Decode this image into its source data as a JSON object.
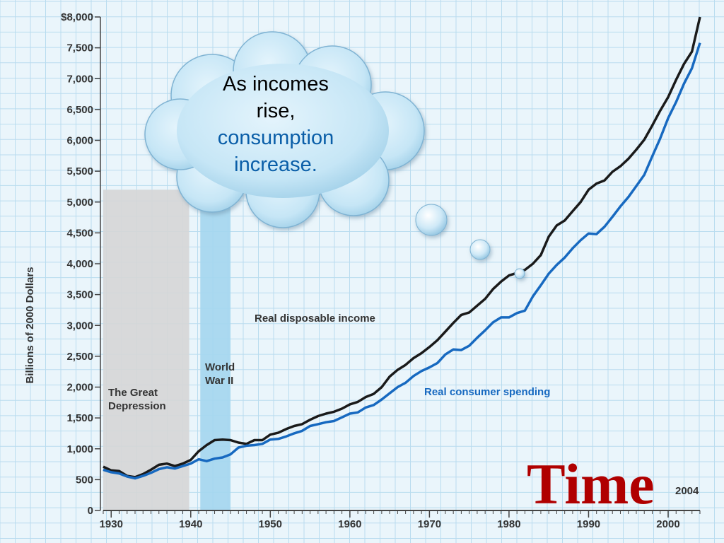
{
  "chart_data": {
    "type": "line",
    "title": "",
    "xlabel": "",
    "ylabel": "Billions of 2000 Dollars",
    "xlim": [
      1929,
      2004
    ],
    "ylim": [
      0,
      8000
    ],
    "x_ticks": [
      1930,
      1940,
      1950,
      1960,
      1970,
      1980,
      1990,
      2000
    ],
    "y_ticks": [
      {
        "value": 0,
        "label": "0"
      },
      {
        "value": 500,
        "label": "500"
      },
      {
        "value": 1000,
        "label": "1,000"
      },
      {
        "value": 1500,
        "label": "1,500"
      },
      {
        "value": 2000,
        "label": "2,000"
      },
      {
        "value": 2500,
        "label": "2,500"
      },
      {
        "value": 3000,
        "label": "3,000"
      },
      {
        "value": 3500,
        "label": "3,500"
      },
      {
        "value": 4000,
        "label": "4,000"
      },
      {
        "value": 4500,
        "label": "4,500"
      },
      {
        "value": 5000,
        "label": "5,000"
      },
      {
        "value": 5500,
        "label": "5,500"
      },
      {
        "value": 6000,
        "label": "6,000"
      },
      {
        "value": 6500,
        "label": "6,500"
      },
      {
        "value": 7000,
        "label": "7,000"
      },
      {
        "value": 7500,
        "label": "7,500"
      },
      {
        "value": 8000,
        "label": "$8,000"
      }
    ],
    "grid": true,
    "end_label": "2004",
    "shaded_regions": [
      {
        "label_lines": [
          "The Great",
          "Depression"
        ],
        "start": 1929,
        "end": 1939.8,
        "color": "#d6d6d6",
        "top_value": 5200
      },
      {
        "label_lines": [
          "World",
          "War II"
        ],
        "start": 1941.2,
        "end": 1945,
        "color": "#a4d6ee",
        "top_value": 5200
      }
    ],
    "series": [
      {
        "name": "Real disposable income",
        "color": "#1a1a1a",
        "x": [
          1929,
          1930,
          1931,
          1932,
          1933,
          1934,
          1935,
          1936,
          1937,
          1938,
          1939,
          1940,
          1941,
          1942,
          1943,
          1944,
          1945,
          1946,
          1947,
          1948,
          1949,
          1950,
          1951,
          1952,
          1953,
          1954,
          1955,
          1956,
          1957,
          1958,
          1959,
          1960,
          1961,
          1962,
          1963,
          1964,
          1965,
          1966,
          1967,
          1968,
          1969,
          1970,
          1971,
          1972,
          1973,
          1974,
          1975,
          1976,
          1977,
          1978,
          1979,
          1980,
          1981,
          1982,
          1983,
          1984,
          1985,
          1986,
          1987,
          1988,
          1989,
          1990,
          1991,
          1992,
          1993,
          1994,
          1995,
          1996,
          1997,
          1998,
          1999,
          2000,
          2001,
          2002,
          2003,
          2004
        ],
        "values": [
          710,
          650,
          640,
          560,
          540,
          590,
          660,
          740,
          760,
          720,
          760,
          820,
          960,
          1060,
          1140,
          1150,
          1140,
          1100,
          1080,
          1140,
          1140,
          1230,
          1260,
          1320,
          1370,
          1400,
          1470,
          1530,
          1570,
          1600,
          1650,
          1720,
          1760,
          1840,
          1890,
          2000,
          2170,
          2280,
          2360,
          2470,
          2550,
          2650,
          2760,
          2900,
          3040,
          3170,
          3210,
          3320,
          3430,
          3590,
          3710,
          3810,
          3850,
          3900,
          4000,
          4140,
          4440,
          4620,
          4700,
          4850,
          5000,
          5200,
          5300,
          5350,
          5490,
          5580,
          5700,
          5850,
          6010,
          6240,
          6480,
          6700,
          6980,
          7240,
          7440,
          8000
        ]
      },
      {
        "name": "Real consumer spending",
        "color": "#1769c0",
        "x": [
          1929,
          1930,
          1931,
          1932,
          1933,
          1934,
          1935,
          1936,
          1937,
          1938,
          1939,
          1940,
          1941,
          1942,
          1943,
          1944,
          1945,
          1946,
          1947,
          1948,
          1949,
          1950,
          1951,
          1952,
          1953,
          1954,
          1955,
          1956,
          1957,
          1958,
          1959,
          1960,
          1961,
          1962,
          1963,
          1964,
          1965,
          1966,
          1967,
          1968,
          1969,
          1970,
          1971,
          1972,
          1973,
          1974,
          1975,
          1976,
          1977,
          1978,
          1979,
          1980,
          1981,
          1982,
          1983,
          1984,
          1985,
          1986,
          1987,
          1988,
          1989,
          1990,
          1991,
          1992,
          1993,
          1994,
          1995,
          1996,
          1997,
          1998,
          1999,
          2000,
          2001,
          2002,
          2003,
          2004
        ],
        "values": [
          660,
          620,
          600,
          550,
          520,
          560,
          610,
          670,
          700,
          680,
          720,
          760,
          830,
          800,
          840,
          860,
          910,
          1020,
          1050,
          1060,
          1080,
          1150,
          1160,
          1200,
          1250,
          1290,
          1370,
          1400,
          1430,
          1450,
          1510,
          1570,
          1590,
          1670,
          1710,
          1800,
          1900,
          2000,
          2070,
          2180,
          2260,
          2320,
          2390,
          2530,
          2610,
          2600,
          2670,
          2800,
          2920,
          3050,
          3130,
          3130,
          3200,
          3240,
          3470,
          3650,
          3840,
          3980,
          4100,
          4250,
          4380,
          4490,
          4480,
          4600,
          4760,
          4930,
          5080,
          5260,
          5440,
          5740,
          6030,
          6360,
          6620,
          6920,
          7170,
          7580
        ]
      }
    ]
  },
  "annotation": {
    "line1": "As incomes",
    "line2": "rise,",
    "line3": "consumption",
    "line4": "increase."
  },
  "overlay": {
    "time_label": "Time"
  }
}
